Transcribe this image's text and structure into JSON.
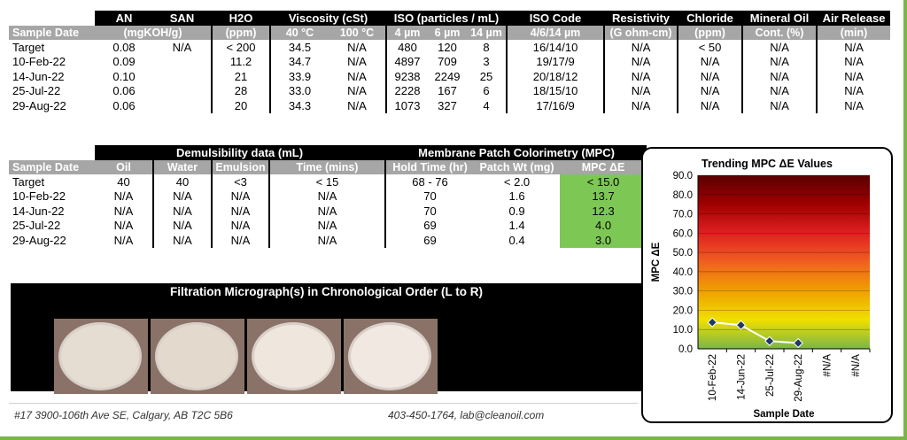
{
  "table1": {
    "groups": [
      "AN",
      "SAN",
      "H2O",
      "Viscosity (cSt)",
      "ISO (particles / mL)",
      "ISO Code",
      "Resistivity",
      "Chloride",
      "Mineral Oil",
      "Air Release"
    ],
    "subheads": [
      "Sample Date",
      "(mgKOH/g)",
      "(ppm)",
      "40 °C",
      "100 °C",
      "4 µm",
      "6 µm",
      "14 µm",
      "4/6/14 µm",
      "(G ohm-cm)",
      "(ppm)",
      "Cont. (%)",
      "(min)"
    ],
    "rows": [
      [
        "Target",
        "0.08",
        "N/A",
        "< 200",
        "34.5",
        "N/A",
        "480",
        "120",
        "8",
        "16/14/10",
        "N/A",
        "< 50",
        "N/A",
        "N/A"
      ],
      [
        "10-Feb-22",
        "0.09",
        "",
        "11.2",
        "34.7",
        "N/A",
        "4897",
        "709",
        "3",
        "19/17/9",
        "N/A",
        "N/A",
        "N/A",
        "N/A"
      ],
      [
        "14-Jun-22",
        "0.10",
        "",
        "21",
        "33.9",
        "N/A",
        "9238",
        "2249",
        "25",
        "20/18/12",
        "N/A",
        "N/A",
        "N/A",
        "N/A"
      ],
      [
        "25-Jul-22",
        "0.06",
        "",
        "28",
        "33.0",
        "N/A",
        "2228",
        "167",
        "6",
        "18/15/10",
        "N/A",
        "N/A",
        "N/A",
        "N/A"
      ],
      [
        "29-Aug-22",
        "0.06",
        "",
        "20",
        "34.3",
        "N/A",
        "1073",
        "327",
        "4",
        "17/16/9",
        "N/A",
        "N/A",
        "N/A",
        "N/A"
      ]
    ]
  },
  "table2": {
    "demuls_title": "Demulsibility data (mL)",
    "mpc_title": "Membrane Patch Colorimetry (MPC)",
    "subheads": [
      "Sample Date",
      "Oil",
      "Water",
      "Emulsion",
      "Time (mins)",
      "Hold Time (hr)",
      "Patch Wt (mg)",
      "MPC ΔE"
    ],
    "rows": [
      [
        "Target",
        "40",
        "40",
        "<3",
        "< 15",
        "68 - 76",
        "< 2.0",
        "< 15.0"
      ],
      [
        "10-Feb-22",
        "N/A",
        "N/A",
        "N/A",
        "N/A",
        "70",
        "1.6",
        "13.7"
      ],
      [
        "14-Jun-22",
        "N/A",
        "N/A",
        "N/A",
        "N/A",
        "70",
        "0.9",
        "12.3"
      ],
      [
        "25-Jul-22",
        "N/A",
        "N/A",
        "N/A",
        "N/A",
        "69",
        "1.4",
        "4.0"
      ],
      [
        "29-Aug-22",
        "N/A",
        "N/A",
        "N/A",
        "N/A",
        "69",
        "0.4",
        "3.0"
      ]
    ]
  },
  "filtration": {
    "title": "Filtration Micrograph(s) in Chronological Order (L to R)",
    "disc_colors": [
      "#e6ddd2",
      "#e3dacd",
      "#efe6dd",
      "#f1e9e1"
    ]
  },
  "footer": {
    "address": "#17 3900-106th Ave SE, Calgary, AB T2C 5B6",
    "contact": "403-450-1764, lab@cleanoil.com"
  },
  "colors": {
    "accent_green": "#7ab648",
    "mpc_green": "#7dc855",
    "header_black": "#000000",
    "subhead_gray": "#a6a6a6"
  },
  "chart_data": {
    "type": "line",
    "title": "Trending MPC ΔE Values",
    "xlabel": "Sample Date",
    "ylabel": "MPC ΔE",
    "categories": [
      "10-Feb-22",
      "14-Jun-22",
      "25-Jul-22",
      "29-Aug-22",
      "#N/A",
      "#N/A"
    ],
    "series": [
      {
        "values": [
          13.7,
          12.3,
          4.0,
          3.0,
          null,
          null
        ]
      }
    ],
    "ylim": [
      0,
      90
    ],
    "yticks": [
      "0.0",
      "10.0",
      "20.0",
      "30.0",
      "40.0",
      "50.0",
      "60.0",
      "70.0",
      "80.0",
      "90.0"
    ],
    "grid": true,
    "background_gradient": [
      "#5a0000",
      "#a00000",
      "#e02020",
      "#f06020",
      "#f0a000",
      "#f0e000",
      "#7ab648"
    ]
  }
}
